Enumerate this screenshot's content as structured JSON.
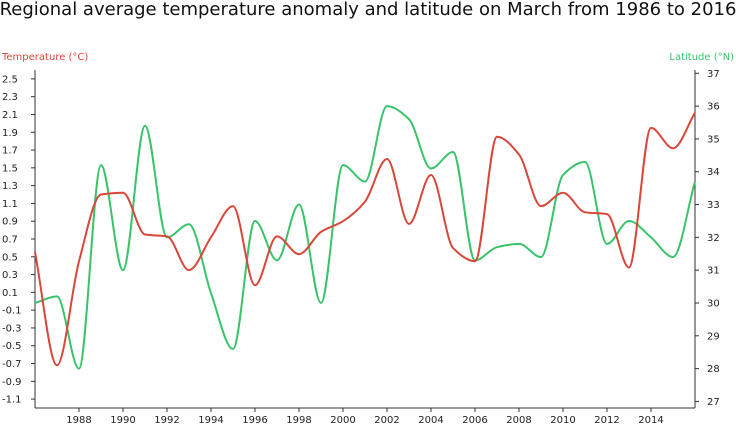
{
  "chart_data": {
    "type": "line",
    "title": "Regional average temperature anomaly and latitude on March from 1986 to 2016",
    "colors": {
      "temperature": "#d9473a",
      "latitude": "#39c46a"
    },
    "x": [
      1986,
      1987,
      1988,
      1989,
      1990,
      1991,
      1992,
      1993,
      1994,
      1995,
      1996,
      1997,
      1998,
      1999,
      2000,
      2001,
      2002,
      2003,
      2004,
      2005,
      2006,
      2007,
      2008,
      2009,
      2010,
      2011,
      2012,
      2013,
      2014,
      2015,
      2016
    ],
    "x_ticks": [
      1988,
      1990,
      1992,
      1994,
      1996,
      1998,
      2000,
      2002,
      2004,
      2006,
      2008,
      2010,
      2012,
      2014
    ],
    "xlim": [
      1986,
      2016
    ],
    "left_axis": {
      "label": "Temperature (°C)",
      "ylim": [
        -1.2,
        2.6
      ],
      "ticks": [
        "2.5",
        "2.3",
        "2.1",
        "1.9",
        "1.7",
        "1.5",
        "1.3",
        "1.1",
        "0.9",
        "0.7",
        "0.5",
        "0.3",
        "0.1",
        "-0.1",
        "-0.3",
        "-0.5",
        "-0.7",
        "-0.9",
        "-1.1"
      ]
    },
    "right_axis": {
      "label": "Latitude (°N)",
      "ylim": [
        26.8,
        37.1
      ],
      "ticks": [
        "37",
        "36",
        "35",
        "34",
        "33",
        "32",
        "31",
        "30",
        "29",
        "28",
        "27"
      ]
    },
    "series": [
      {
        "name": "Temperature (°C)",
        "axis": "left",
        "values": [
          0.55,
          -0.72,
          0.45,
          1.2,
          1.22,
          0.75,
          0.73,
          0.35,
          0.72,
          1.07,
          0.18,
          0.73,
          0.53,
          0.78,
          0.9,
          1.12,
          1.6,
          0.87,
          1.42,
          0.6,
          0.45,
          1.85,
          1.65,
          1.07,
          1.22,
          1.0,
          0.98,
          0.38,
          1.95,
          1.72,
          2.12
        ]
      },
      {
        "name": "Latitude (°N)",
        "axis": "right",
        "values": [
          30.0,
          30.2,
          28.0,
          34.2,
          31.0,
          35.4,
          32.0,
          32.4,
          30.3,
          28.6,
          32.5,
          31.3,
          33.0,
          30.0,
          34.2,
          33.7,
          36.0,
          35.6,
          34.1,
          34.6,
          31.3,
          31.7,
          31.8,
          31.4,
          33.9,
          34.3,
          31.8,
          32.5,
          32.0,
          31.4,
          33.7
        ]
      }
    ],
    "grid": false
  }
}
